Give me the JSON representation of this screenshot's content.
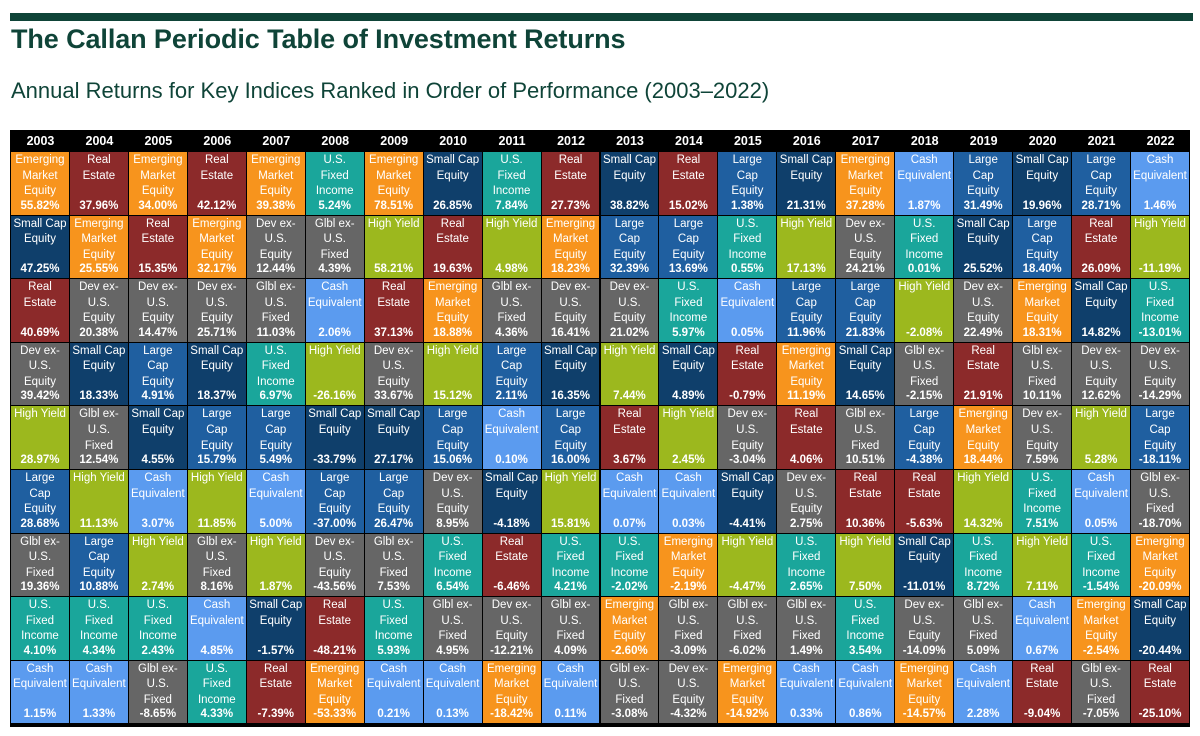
{
  "title": "The Callan Periodic Table of Investment Returns",
  "subtitle": "Annual Returns for Key Indices Ranked in Order of Performance (2003–2022)",
  "colors": {
    "Emerging Market Equity": "#f7941d",
    "Real Estate": "#8c2a2a",
    "U.S. Fixed Income": "#1aa69b",
    "Glbl ex-U.S. Fixed": "#2e8b7f",
    "Small Cap Equity": "#0f3f6b",
    "Large Cap Equity": "#1f5fa0",
    "Dev ex-U.S. Equity": "#d9601e",
    "High Yield": "#9cb81e",
    "Cash Equivalent": "#5b9bef"
  },
  "chart_data": {
    "type": "table",
    "title": "The Callan Periodic Table of Investment Returns",
    "subtitle": "Annual Returns for Key Indices Ranked in Order of Performance (2003–2022)",
    "years": [
      "2003",
      "2004",
      "2005",
      "2006",
      "2007",
      "2008",
      "2009",
      "2010",
      "2011",
      "2012",
      "2013",
      "2014",
      "2015",
      "2016",
      "2017",
      "2018",
      "2019",
      "2020",
      "2021",
      "2022"
    ],
    "columns": [
      [
        [
          "Emerging\nMarket\nEquity",
          "55.82%"
        ],
        [
          "Small Cap\nEquity",
          "47.25%"
        ],
        [
          "Real\nEstate",
          "40.69%"
        ],
        [
          "Dev ex-\nU.S.\nEquity",
          "39.42%"
        ],
        [
          "High Yield",
          "28.97%"
        ],
        [
          "Large\nCap\nEquity",
          "28.68%"
        ],
        [
          "Glbl ex-\nU.S.\nFixed",
          "19.36%"
        ],
        [
          "U.S.\nFixed\nIncome",
          "4.10%"
        ],
        [
          "Cash\nEquivalent",
          "1.15%"
        ]
      ],
      [
        [
          "Real\nEstate",
          "37.96%"
        ],
        [
          "Emerging\nMarket\nEquity",
          "25.55%"
        ],
        [
          "Dev ex-\nU.S.\nEquity",
          "20.38%"
        ],
        [
          "Small Cap\nEquity",
          "18.33%"
        ],
        [
          "Glbl ex-\nU.S.\nFixed",
          "12.54%"
        ],
        [
          "High Yield",
          "11.13%"
        ],
        [
          "Large\nCap\nEquity",
          "10.88%"
        ],
        [
          "U.S.\nFixed\nIncome",
          "4.34%"
        ],
        [
          "Cash\nEquivalent",
          "1.33%"
        ]
      ],
      [
        [
          "Emerging\nMarket\nEquity",
          "34.00%"
        ],
        [
          "Real\nEstate",
          "15.35%"
        ],
        [
          "Dev ex-\nU.S.\nEquity",
          "14.47%"
        ],
        [
          "Large\nCap\nEquity",
          "4.91%"
        ],
        [
          "Small Cap\nEquity",
          "4.55%"
        ],
        [
          "Cash\nEquivalent",
          "3.07%"
        ],
        [
          "High Yield",
          "2.74%"
        ],
        [
          "U.S.\nFixed\nIncome",
          "2.43%"
        ],
        [
          "Glbl ex-\nU.S.\nFixed",
          "-8.65%"
        ]
      ],
      [
        [
          "Real\nEstate",
          "42.12%"
        ],
        [
          "Emerging\nMarket\nEquity",
          "32.17%"
        ],
        [
          "Dev ex-\nU.S.\nEquity",
          "25.71%"
        ],
        [
          "Small Cap\nEquity",
          "18.37%"
        ],
        [
          "Large\nCap\nEquity",
          "15.79%"
        ],
        [
          "High Yield",
          "11.85%"
        ],
        [
          "Glbl ex-\nU.S.\nFixed",
          "8.16%"
        ],
        [
          "Cash\nEquivalent",
          "4.85%"
        ],
        [
          "U.S.\nFixed\nIncome",
          "4.33%"
        ]
      ],
      [
        [
          "Emerging\nMarket\nEquity",
          "39.38%"
        ],
        [
          "Dev ex-\nU.S.\nEquity",
          "12.44%"
        ],
        [
          "Glbl ex-\nU.S.\nFixed",
          "11.03%"
        ],
        [
          "U.S.\nFixed\nIncome",
          "6.97%"
        ],
        [
          "Large\nCap\nEquity",
          "5.49%"
        ],
        [
          "Cash\nEquivalent",
          "5.00%"
        ],
        [
          "High Yield",
          "1.87%"
        ],
        [
          "Small Cap\nEquity",
          "-1.57%"
        ],
        [
          "Real\nEstate",
          "-7.39%"
        ]
      ],
      [
        [
          "U.S.\nFixed\nIncome",
          "5.24%"
        ],
        [
          "Glbl ex-\nU.S.\nFixed",
          "4.39%"
        ],
        [
          "Cash\nEquivalent",
          "2.06%"
        ],
        [
          "High Yield",
          "-26.16%"
        ],
        [
          "Small Cap\nEquity",
          "-33.79%"
        ],
        [
          "Large\nCap\nEquity",
          "-37.00%"
        ],
        [
          "Dev ex-\nU.S.\nEquity",
          "-43.56%"
        ],
        [
          "Real\nEstate",
          "-48.21%"
        ],
        [
          "Emerging\nMarket\nEquity",
          "-53.33%"
        ]
      ],
      [
        [
          "Emerging\nMarket\nEquity",
          "78.51%"
        ],
        [
          "High Yield",
          "58.21%"
        ],
        [
          "Real\nEstate",
          "37.13%"
        ],
        [
          "Dev ex-\nU.S.\nEquity",
          "33.67%"
        ],
        [
          "Small Cap\nEquity",
          "27.17%"
        ],
        [
          "Large\nCap\nEquity",
          "26.47%"
        ],
        [
          "Glbl ex-\nU.S.\nFixed",
          "7.53%"
        ],
        [
          "U.S.\nFixed\nIncome",
          "5.93%"
        ],
        [
          "Cash\nEquivalent",
          "0.21%"
        ]
      ],
      [
        [
          "Small Cap\nEquity",
          "26.85%"
        ],
        [
          "Real\nEstate",
          "19.63%"
        ],
        [
          "Emerging\nMarket\nEquity",
          "18.88%"
        ],
        [
          "High Yield",
          "15.12%"
        ],
        [
          "Large\nCap\nEquity",
          "15.06%"
        ],
        [
          "Dev ex-\nU.S.\nEquity",
          "8.95%"
        ],
        [
          "U.S.\nFixed\nIncome",
          "6.54%"
        ],
        [
          "Glbl ex-\nU.S.\nFixed",
          "4.95%"
        ],
        [
          "Cash\nEquivalent",
          "0.13%"
        ]
      ],
      [
        [
          "U.S.\nFixed\nIncome",
          "7.84%"
        ],
        [
          "High Yield",
          "4.98%"
        ],
        [
          "Glbl ex-\nU.S.\nFixed",
          "4.36%"
        ],
        [
          "Large\nCap\nEquity",
          "2.11%"
        ],
        [
          "Cash\nEquivalent",
          "0.10%"
        ],
        [
          "Small Cap\nEquity",
          "-4.18%"
        ],
        [
          "Real\nEstate",
          "-6.46%"
        ],
        [
          "Dev ex-\nU.S.\nEquity",
          "-12.21%"
        ],
        [
          "Emerging\nMarket\nEquity",
          "-18.42%"
        ]
      ],
      [
        [
          "Real\nEstate",
          "27.73%"
        ],
        [
          "Emerging\nMarket\nEquity",
          "18.23%"
        ],
        [
          "Dev ex-\nU.S.\nEquity",
          "16.41%"
        ],
        [
          "Small Cap\nEquity",
          "16.35%"
        ],
        [
          "Large\nCap\nEquity",
          "16.00%"
        ],
        [
          "High Yield",
          "15.81%"
        ],
        [
          "U.S.\nFixed\nIncome",
          "4.21%"
        ],
        [
          "Glbl ex-\nU.S.\nFixed",
          "4.09%"
        ],
        [
          "Cash\nEquivalent",
          "0.11%"
        ]
      ],
      [
        [
          "Small Cap\nEquity",
          "38.82%"
        ],
        [
          "Large\nCap\nEquity",
          "32.39%"
        ],
        [
          "Dev ex-\nU.S.\nEquity",
          "21.02%"
        ],
        [
          "High Yield",
          "7.44%"
        ],
        [
          "Real\nEstate",
          "3.67%"
        ],
        [
          "Cash\nEquivalent",
          "0.07%"
        ],
        [
          "U.S.\nFixed\nIncome",
          "-2.02%"
        ],
        [
          "Emerging\nMarket\nEquity",
          "-2.60%"
        ],
        [
          "Glbl ex-\nU.S.\nFixed",
          "-3.08%"
        ]
      ],
      [
        [
          "Real\nEstate",
          "15.02%"
        ],
        [
          "Large\nCap\nEquity",
          "13.69%"
        ],
        [
          "U.S.\nFixed\nIncome",
          "5.97%"
        ],
        [
          "Small Cap\nEquity",
          "4.89%"
        ],
        [
          "High Yield",
          "2.45%"
        ],
        [
          "Cash\nEquivalent",
          "0.03%"
        ],
        [
          "Emerging\nMarket\nEquity",
          "-2.19%"
        ],
        [
          "Glbl ex-\nU.S.\nFixed",
          "-3.09%"
        ],
        [
          "Dev ex-\nU.S.\nEquity",
          "-4.32%"
        ]
      ],
      [
        [
          "Large\nCap\nEquity",
          "1.38%"
        ],
        [
          "U.S.\nFixed\nIncome",
          "0.55%"
        ],
        [
          "Cash\nEquivalent",
          "0.05%"
        ],
        [
          "Real\nEstate",
          "-0.79%"
        ],
        [
          "Dev ex-\nU.S.\nEquity",
          "-3.04%"
        ],
        [
          "Small Cap\nEquity",
          "-4.41%"
        ],
        [
          "High Yield",
          "-4.47%"
        ],
        [
          "Glbl ex-\nU.S.\nFixed",
          "-6.02%"
        ],
        [
          "Emerging\nMarket\nEquity",
          "-14.92%"
        ]
      ],
      [
        [
          "Small Cap\nEquity",
          "21.31%"
        ],
        [
          "High Yield",
          "17.13%"
        ],
        [
          "Large\nCap\nEquity",
          "11.96%"
        ],
        [
          "Emerging\nMarket\nEquity",
          "11.19%"
        ],
        [
          "Real\nEstate",
          "4.06%"
        ],
        [
          "Dev ex-\nU.S.\nEquity",
          "2.75%"
        ],
        [
          "U.S.\nFixed\nIncome",
          "2.65%"
        ],
        [
          "Glbl ex-\nU.S.\nFixed",
          "1.49%"
        ],
        [
          "Cash\nEquivalent",
          "0.33%"
        ]
      ],
      [
        [
          "Emerging\nMarket\nEquity",
          "37.28%"
        ],
        [
          "Dev ex-\nU.S.\nEquity",
          "24.21%"
        ],
        [
          "Large\nCap\nEquity",
          "21.83%"
        ],
        [
          "Small Cap\nEquity",
          "14.65%"
        ],
        [
          "Glbl ex-\nU.S.\nFixed",
          "10.51%"
        ],
        [
          "Real\nEstate",
          "10.36%"
        ],
        [
          "High Yield",
          "7.50%"
        ],
        [
          "U.S.\nFixed\nIncome",
          "3.54%"
        ],
        [
          "Cash\nEquivalent",
          "0.86%"
        ]
      ],
      [
        [
          "Cash\nEquivalent",
          "1.87%"
        ],
        [
          "U.S.\nFixed\nIncome",
          "0.01%"
        ],
        [
          "High Yield",
          "-2.08%"
        ],
        [
          "Glbl ex-\nU.S.\nFixed",
          "-2.15%"
        ],
        [
          "Large\nCap\nEquity",
          "-4.38%"
        ],
        [
          "Real\nEstate",
          "-5.63%"
        ],
        [
          "Small Cap\nEquity",
          "-11.01%"
        ],
        [
          "Dev ex-\nU.S.\nEquity",
          "-14.09%"
        ],
        [
          "Emerging\nMarket\nEquity",
          "-14.57%"
        ]
      ],
      [
        [
          "Large\nCap\nEquity",
          "31.49%"
        ],
        [
          "Small Cap\nEquity",
          "25.52%"
        ],
        [
          "Dev ex-\nU.S.\nEquity",
          "22.49%"
        ],
        [
          "Real\nEstate",
          "21.91%"
        ],
        [
          "Emerging\nMarket\nEquity",
          "18.44%"
        ],
        [
          "High Yield",
          "14.32%"
        ],
        [
          "U.S.\nFixed\nIncome",
          "8.72%"
        ],
        [
          "Glbl ex-\nU.S.\nFixed",
          "5.09%"
        ],
        [
          "Cash\nEquivalent",
          "2.28%"
        ]
      ],
      [
        [
          "Small Cap\nEquity",
          "19.96%"
        ],
        [
          "Large\nCap\nEquity",
          "18.40%"
        ],
        [
          "Emerging\nMarket\nEquity",
          "18.31%"
        ],
        [
          "Glbl ex-\nU.S.\nFixed",
          "10.11%"
        ],
        [
          "Dev ex-\nU.S.\nEquity",
          "7.59%"
        ],
        [
          "U.S.\nFixed\nIncome",
          "7.51%"
        ],
        [
          "High Yield",
          "7.11%"
        ],
        [
          "Cash\nEquivalent",
          "0.67%"
        ],
        [
          "Real\nEstate",
          "-9.04%"
        ]
      ],
      [
        [
          "Large\nCap\nEquity",
          "28.71%"
        ],
        [
          "Real\nEstate",
          "26.09%"
        ],
        [
          "Small Cap\nEquity",
          "14.82%"
        ],
        [
          "Dev ex-\nU.S.\nEquity",
          "12.62%"
        ],
        [
          "High Yield",
          "5.28%"
        ],
        [
          "Cash\nEquivalent",
          "0.05%"
        ],
        [
          "U.S.\nFixed\nIncome",
          "-1.54%"
        ],
        [
          "Emerging\nMarket\nEquity",
          "-2.54%"
        ],
        [
          "Glbl ex-\nU.S.\nFixed",
          "-7.05%"
        ]
      ],
      [
        [
          "Cash\nEquivalent",
          "1.46%"
        ],
        [
          "High Yield",
          "-11.19%"
        ],
        [
          "U.S.\nFixed\nIncome",
          "-13.01%"
        ],
        [
          "Dev ex-\nU.S.\nEquity",
          "-14.29%"
        ],
        [
          "Large\nCap\nEquity",
          "-18.11%"
        ],
        [
          "Glbl ex-\nU.S.\nFixed",
          "-18.70%"
        ],
        [
          "Emerging\nMarket\nEquity",
          "-20.09%"
        ],
        [
          "Small Cap\nEquity",
          "-20.44%"
        ],
        [
          "Real\nEstate",
          "-25.10%"
        ]
      ]
    ]
  }
}
